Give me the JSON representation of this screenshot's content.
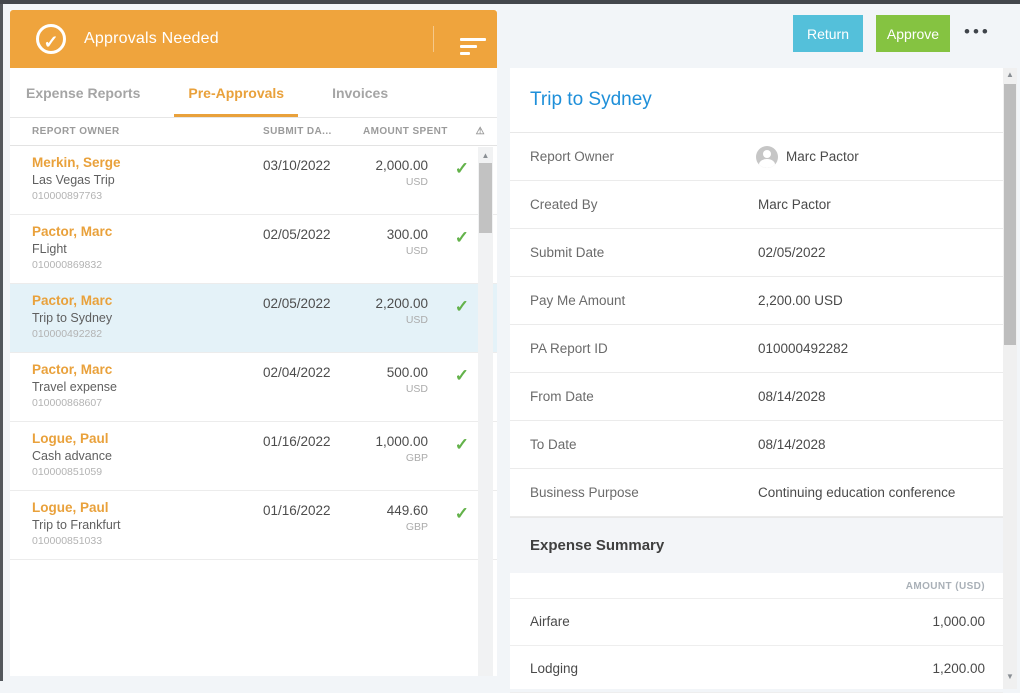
{
  "colors": {
    "header_orange": "#efa43d",
    "accent_orange": "#e9a13b",
    "selected_row": "#e4f2f8",
    "return_button": "#54c0da",
    "approve_button": "#85c341",
    "title_blue": "#1e8fd9",
    "check_green": "#63b24a"
  },
  "left_panel": {
    "header": {
      "title": "Approvals Needed",
      "check_icon": "circle-check-icon",
      "check_glyph": "✓",
      "sort_icon": "sort-filter-icon"
    },
    "tabs": [
      {
        "label": "Expense Reports",
        "active": false
      },
      {
        "label": "Pre-Approvals",
        "active": true
      },
      {
        "label": "Invoices",
        "active": false
      }
    ],
    "columns": [
      "REPORT OWNER",
      "SUBMIT DA...",
      "AMOUNT SPENT"
    ],
    "warning_icon_glyph": "⚠",
    "rows": [
      {
        "owner": "Merkin, Serge",
        "description": "Las Vegas Trip",
        "id": "010000897763",
        "submit_date": "03/10/2022",
        "amount": "2,000.00",
        "currency": "USD",
        "selected": false
      },
      {
        "owner": "Pactor, Marc",
        "description": "FLight",
        "id": "010000869832",
        "submit_date": "02/05/2022",
        "amount": "300.00",
        "currency": "USD",
        "selected": false
      },
      {
        "owner": "Pactor, Marc",
        "description": "Trip to Sydney",
        "id": "010000492282",
        "submit_date": "02/05/2022",
        "amount": "2,200.00",
        "currency": "USD",
        "selected": true
      },
      {
        "owner": "Pactor, Marc",
        "description": "Travel expense",
        "id": "010000868607",
        "submit_date": "02/04/2022",
        "amount": "500.00",
        "currency": "USD",
        "selected": false
      },
      {
        "owner": "Logue, Paul",
        "description": "Cash advance",
        "id": "010000851059",
        "submit_date": "01/16/2022",
        "amount": "1,000.00",
        "currency": "GBP",
        "selected": false
      },
      {
        "owner": "Logue, Paul",
        "description": "Trip to Frankfurt",
        "id": "010000851033",
        "submit_date": "01/16/2022",
        "amount": "449.60",
        "currency": "GBP",
        "selected": false
      }
    ],
    "row_check_glyph": "✓"
  },
  "detail_panel": {
    "actions": {
      "return_label": "Return",
      "approve_label": "Approve",
      "more_label": "•••"
    },
    "title": "Trip to Sydney",
    "fields": [
      {
        "label": "Report Owner",
        "value": "Marc Pactor",
        "has_avatar": true
      },
      {
        "label": "Created By",
        "value": "Marc Pactor",
        "has_avatar": false
      },
      {
        "label": "Submit Date",
        "value": "02/05/2022",
        "has_avatar": false
      },
      {
        "label": "Pay Me Amount",
        "value": "2,200.00 USD",
        "has_avatar": false
      },
      {
        "label": "PA Report ID",
        "value": "010000492282",
        "has_avatar": false
      },
      {
        "label": "From Date",
        "value": "08/14/2028",
        "has_avatar": false
      },
      {
        "label": "To Date",
        "value": "08/14/2028",
        "has_avatar": false
      },
      {
        "label": "Business Purpose",
        "value": "Continuing education conference",
        "has_avatar": false
      }
    ],
    "expense_summary": {
      "heading": "Expense Summary",
      "amount_column": "AMOUNT (USD)",
      "items": [
        {
          "category": "Airfare",
          "amount": "1,000.00"
        },
        {
          "category": "Lodging",
          "amount": "1,200.00"
        }
      ]
    }
  },
  "scrollbars": {
    "up_glyph": "▲",
    "down_glyph": "▼"
  }
}
